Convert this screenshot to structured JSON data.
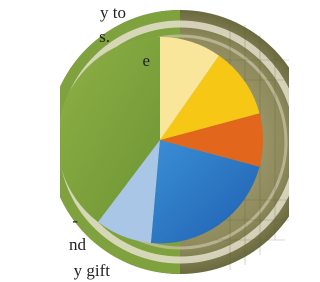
{
  "text_fragments": [
    "y to",
    "s.",
    "e",
    "-",
    "nd",
    "y gift"
  ]
}
